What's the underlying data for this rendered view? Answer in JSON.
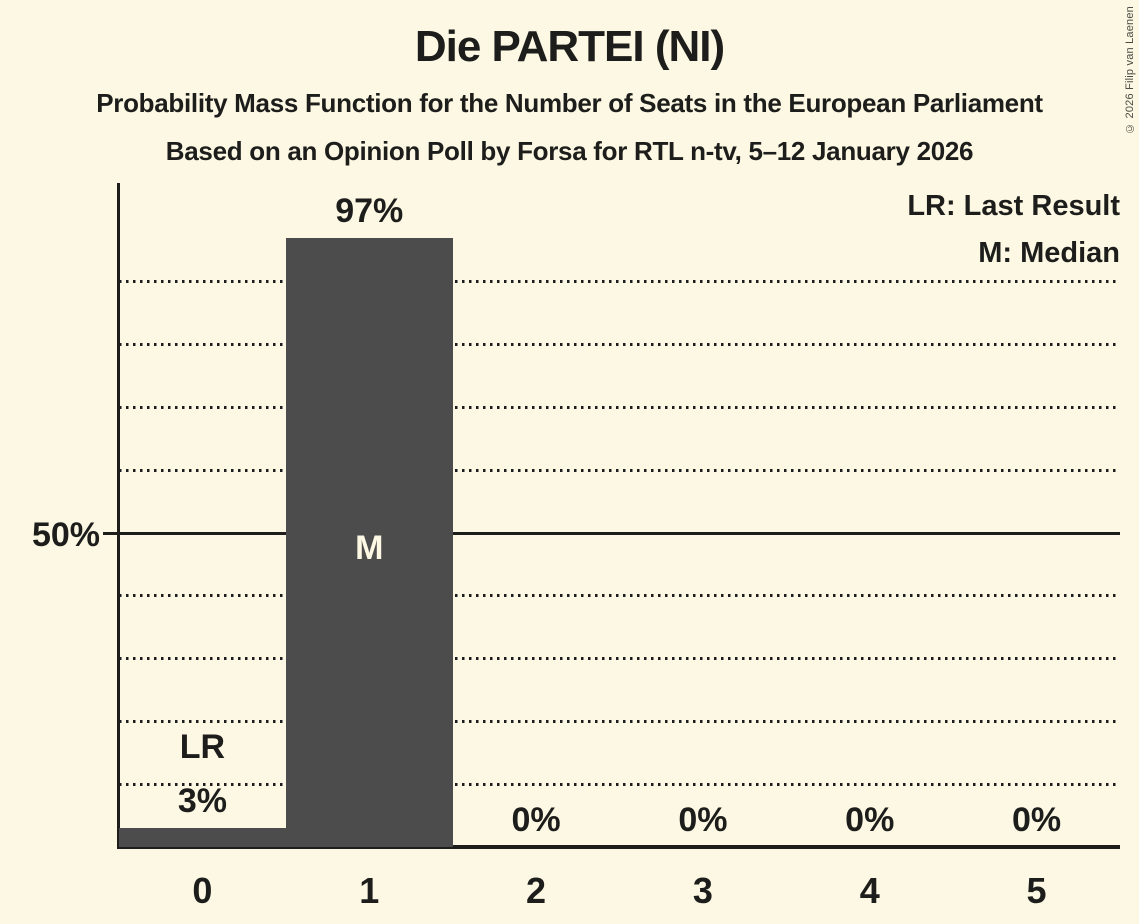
{
  "title": "Die PARTEI (NI)",
  "subtitle": "Probability Mass Function for the Number of Seats in the European Parliament",
  "subsubtitle": "Based on an Opinion Poll by Forsa for RTL n-tv, 5–12 January 2026",
  "copyright": "© 2026 Filip van Laenen",
  "legend": {
    "lr": "LR: Last Result",
    "m": "M: Median"
  },
  "y_axis": {
    "label_50": "50%"
  },
  "colors": {
    "background": "#FCF8E3",
    "bar": "#4D4C4C",
    "text": "#1D1D1B"
  },
  "chart_data": {
    "type": "bar",
    "title": "Die PARTEI (NI)",
    "categories": [
      "0",
      "1",
      "2",
      "3",
      "4",
      "5"
    ],
    "values": [
      3,
      97,
      0,
      0,
      0,
      0
    ],
    "value_labels": [
      "3%",
      "97%",
      "0%",
      "0%",
      "0%",
      "0%"
    ],
    "annotations": [
      {
        "category_index": 0,
        "text": "LR",
        "meaning": "Last Result",
        "placement": "above-value-label"
      },
      {
        "category_index": 1,
        "text": "M",
        "meaning": "Median",
        "placement": "inside-bar"
      }
    ],
    "ylabel": "",
    "ylim": [
      0,
      100
    ],
    "ytick_labeled": [
      50
    ],
    "gridlines_pct": [
      10,
      20,
      30,
      40,
      50,
      60,
      70,
      80,
      90
    ],
    "solid_gridline_pct": 50,
    "grid_style": "dotted",
    "legend_position": "top-right"
  }
}
